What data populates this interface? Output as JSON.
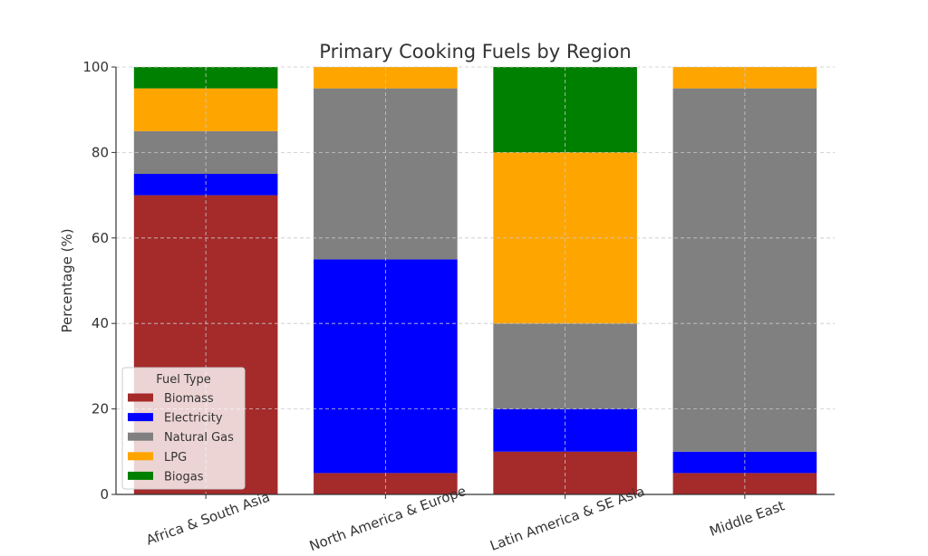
{
  "chart_data": {
    "type": "bar",
    "stacked": true,
    "title": "Primary Cooking Fuels by Region",
    "xlabel": "",
    "ylabel": "Percentage (%)",
    "ylim": [
      0,
      100
    ],
    "yticks": [
      0,
      20,
      40,
      60,
      80,
      100
    ],
    "grid": true,
    "legend_title": "Fuel Type",
    "legend_position": "lower-left",
    "categories": [
      "Africa & South Asia",
      "North America & Europe",
      "Latin America & SE Asia",
      "Middle East"
    ],
    "series": [
      {
        "name": "Biomass",
        "color": "#a52a2a",
        "values": [
          70,
          5,
          10,
          5
        ]
      },
      {
        "name": "Electricity",
        "color": "#0000ff",
        "values": [
          5,
          50,
          10,
          5
        ]
      },
      {
        "name": "Natural Gas",
        "color": "#808080",
        "values": [
          10,
          40,
          20,
          85
        ]
      },
      {
        "name": "LPG",
        "color": "#ffa500",
        "values": [
          10,
          5,
          40,
          5
        ]
      },
      {
        "name": "Biogas",
        "color": "#008000",
        "values": [
          5,
          0,
          20,
          0
        ]
      }
    ]
  }
}
